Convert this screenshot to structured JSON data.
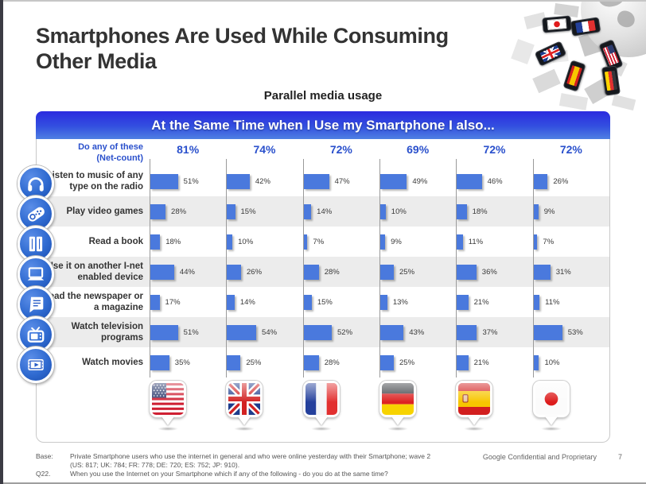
{
  "slide": {
    "title": "Smartphones Are Used While Consuming Other Media",
    "subtitle": "Parallel media usage",
    "banner": "At the Same Time when I Use my Smartphone I also..."
  },
  "chart_data": {
    "type": "bar",
    "orientation": "horizontal",
    "unit": "percent",
    "title": "At the Same Time when I Use my Smartphone I also...",
    "net_count_label_1": "Do any of these",
    "net_count_label_2": "(Net-count)",
    "countries": [
      "US",
      "UK",
      "FR",
      "DE",
      "ES",
      "JP"
    ],
    "net_counts": [
      "81%",
      "74%",
      "72%",
      "69%",
      "72%",
      "72%"
    ],
    "categories": [
      "Listen to music of any type on the radio",
      "Play video games",
      "Read a book",
      "Use it on another I-net enabled device",
      "Read the newspaper or a magazine",
      "Watch television programs",
      "Watch movies"
    ],
    "rows": [
      {
        "label": "Listen to music of any type on the radio",
        "icon": "headphones-icon",
        "values": [
          "51%",
          "42%",
          "47%",
          "49%",
          "46%",
          "26%"
        ]
      },
      {
        "label": "Play video games",
        "icon": "gamepad-icon",
        "values": [
          "28%",
          "15%",
          "14%",
          "10%",
          "18%",
          "9%"
        ]
      },
      {
        "label": "Read a book",
        "icon": "book-icon",
        "values": [
          "18%",
          "10%",
          "7%",
          "9%",
          "11%",
          "7%"
        ]
      },
      {
        "label": "Use it on another I-net enabled device",
        "icon": "laptop-icon",
        "values": [
          "44%",
          "26%",
          "28%",
          "25%",
          "36%",
          "31%"
        ]
      },
      {
        "label": "Read the newspaper or a magazine",
        "icon": "newspaper-icon",
        "values": [
          "17%",
          "14%",
          "15%",
          "13%",
          "21%",
          "11%"
        ]
      },
      {
        "label": "Watch television programs",
        "icon": "tv-icon",
        "values": [
          "51%",
          "54%",
          "52%",
          "43%",
          "37%",
          "53%"
        ]
      },
      {
        "label": "Watch movies",
        "icon": "movie-icon",
        "values": [
          "35%",
          "25%",
          "28%",
          "25%",
          "21%",
          "10%"
        ]
      }
    ],
    "legend_position": "bottom-flags",
    "bar_color": "#4a79dd",
    "axis_color": "#9a9a9a",
    "alt_row_color": "#ececec",
    "accent_color": "#2a50cc",
    "banner_gradient": [
      "#2b2adf",
      "#4f80e2"
    ],
    "xlim": [
      0,
      100
    ],
    "grid": false
  },
  "footer": {
    "base_label": "Base:",
    "base_text_line1": "Private Smartphone users who use the internet in general and who were online yesterday with their Smartphone; wave 2",
    "base_text_line2": "(US: 817; UK: 784; FR: 778; DE: 720; ES: 752; JP: 910).",
    "q_label": "Q22.",
    "q_text": "When you use the Internet on your Smartphone which if any of the following - do you do at the same time?",
    "confidential": "Google Confidential and Proprietary",
    "page_number": "7"
  }
}
